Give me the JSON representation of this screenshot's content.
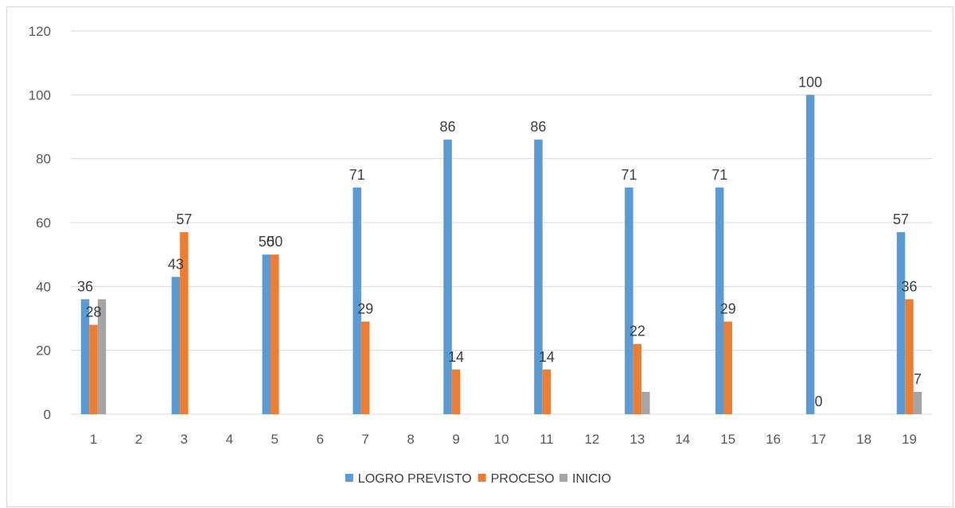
{
  "chart_data": {
    "type": "bar",
    "title": "",
    "xlabel": "",
    "ylabel": "",
    "categories": [
      "1",
      "2",
      "3",
      "4",
      "5",
      "6",
      "7",
      "8",
      "9",
      "10",
      "11",
      "12",
      "13",
      "14",
      "15",
      "16",
      "17",
      "18",
      "19"
    ],
    "ylim": [
      0,
      120
    ],
    "yticks": [
      0,
      20,
      40,
      60,
      80,
      100,
      120
    ],
    "grid": true,
    "legend_position": "bottom",
    "series": [
      {
        "name": "LOGRO PREVISTO",
        "color": "#5b9bd5",
        "values": [
          36,
          null,
          43,
          null,
          50,
          null,
          71,
          null,
          86,
          null,
          86,
          null,
          71,
          null,
          71,
          null,
          100,
          null,
          57
        ],
        "labels": [
          "36",
          null,
          "43",
          null,
          "50",
          null,
          "71",
          null,
          "86",
          null,
          "86",
          null,
          "71",
          null,
          "71",
          null,
          "100",
          null,
          "57"
        ]
      },
      {
        "name": "PROCESO",
        "color": "#ed7d31",
        "values": [
          28,
          null,
          57,
          null,
          50,
          null,
          29,
          null,
          14,
          null,
          14,
          null,
          22,
          null,
          29,
          null,
          0,
          null,
          36
        ],
        "labels": [
          "28",
          null,
          "57",
          null,
          "50",
          null,
          "29",
          null,
          "14",
          null,
          "14",
          null,
          "22",
          null,
          "29",
          null,
          "0",
          null,
          "36"
        ]
      },
      {
        "name": "INICIO",
        "color": "#a5a5a5",
        "values": [
          36,
          null,
          null,
          null,
          null,
          null,
          null,
          null,
          null,
          null,
          null,
          null,
          7,
          null,
          null,
          null,
          null,
          null,
          7
        ],
        "labels": [
          null,
          null,
          null,
          null,
          null,
          null,
          null,
          null,
          null,
          null,
          null,
          null,
          null,
          null,
          null,
          null,
          null,
          null,
          "7"
        ]
      }
    ]
  }
}
